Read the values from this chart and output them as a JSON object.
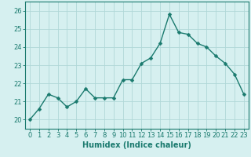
{
  "x": [
    0,
    1,
    2,
    3,
    4,
    5,
    6,
    7,
    8,
    9,
    10,
    11,
    12,
    13,
    14,
    15,
    16,
    17,
    18,
    19,
    20,
    21,
    22,
    23
  ],
  "y": [
    20.0,
    20.6,
    21.4,
    21.2,
    20.7,
    21.0,
    21.7,
    21.2,
    21.2,
    21.2,
    22.2,
    22.2,
    23.1,
    23.4,
    24.2,
    25.8,
    24.8,
    24.7,
    24.2,
    24.0,
    23.5,
    23.1,
    22.5,
    21.4
  ],
  "line_color": "#1a7a6e",
  "marker": "D",
  "marker_size": 2.5,
  "line_width": 1.0,
  "bg_color": "#d6f0f0",
  "grid_color": "#b0d8d8",
  "xlabel": "Humidex (Indice chaleur)",
  "xlim": [
    -0.5,
    23.5
  ],
  "ylim": [
    19.5,
    26.5
  ],
  "yticks": [
    20,
    21,
    22,
    23,
    24,
    25,
    26
  ],
  "xticks": [
    0,
    1,
    2,
    3,
    4,
    5,
    6,
    7,
    8,
    9,
    10,
    11,
    12,
    13,
    14,
    15,
    16,
    17,
    18,
    19,
    20,
    21,
    22,
    23
  ],
  "tick_fontsize": 6.0,
  "label_fontsize": 7.0
}
